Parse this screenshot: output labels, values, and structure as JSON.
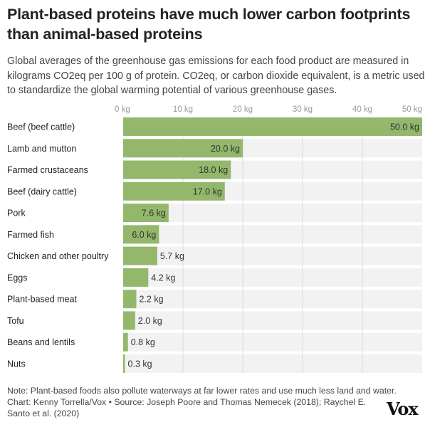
{
  "title": "Plant-based proteins have much lower carbon footprints than animal-based proteins",
  "subtitle": "Global averages of the greenhouse gas emissions for each food product are measured in kilograms CO2eq per 100 g of protein. CO2eq, or carbon dioxide equivalent, is a metric used to standardize the global warming potential of various greenhouse gases.",
  "note": "Note: Plant-based foods also pollute waterways at far lower rates and use much less land and water.",
  "source": "Chart: Kenny Torrella/Vox • Source: Joseph Poore and Thomas Nemecek (2018); Raychel E. Santo et al. (2020)",
  "logo": "Vox",
  "chart_data": {
    "type": "bar",
    "orientation": "horizontal",
    "unit": "kg",
    "xlim": [
      0,
      50
    ],
    "ticks": [
      0,
      10,
      20,
      30,
      40,
      50
    ],
    "tick_labels": [
      "0 kg",
      "10 kg",
      "20 kg",
      "30 kg",
      "40 kg",
      "50 kg"
    ],
    "grid": true,
    "bar_color": "#93b86b",
    "categories": [
      "Beef (beef cattle)",
      "Lamb and mutton",
      "Farmed crustaceans",
      "Beef (dairy cattle)",
      "Pork",
      "Farmed fish",
      "Chicken and other poultry",
      "Eggs",
      "Plant-based meat",
      "Tofu",
      "Beans and lentils",
      "Nuts"
    ],
    "values": [
      50.0,
      20.0,
      18.0,
      17.0,
      7.6,
      6.0,
      5.7,
      4.2,
      2.2,
      2.0,
      0.8,
      0.3
    ],
    "data_labels": [
      "50.0 kg",
      "20.0 kg",
      "18.0 kg",
      "17.0 kg",
      "7.6 kg",
      "6.0 kg",
      "5.7 kg",
      "4.2 kg",
      "2.2 kg",
      "2.0 kg",
      "0.8 kg",
      "0.3 kg"
    ]
  }
}
